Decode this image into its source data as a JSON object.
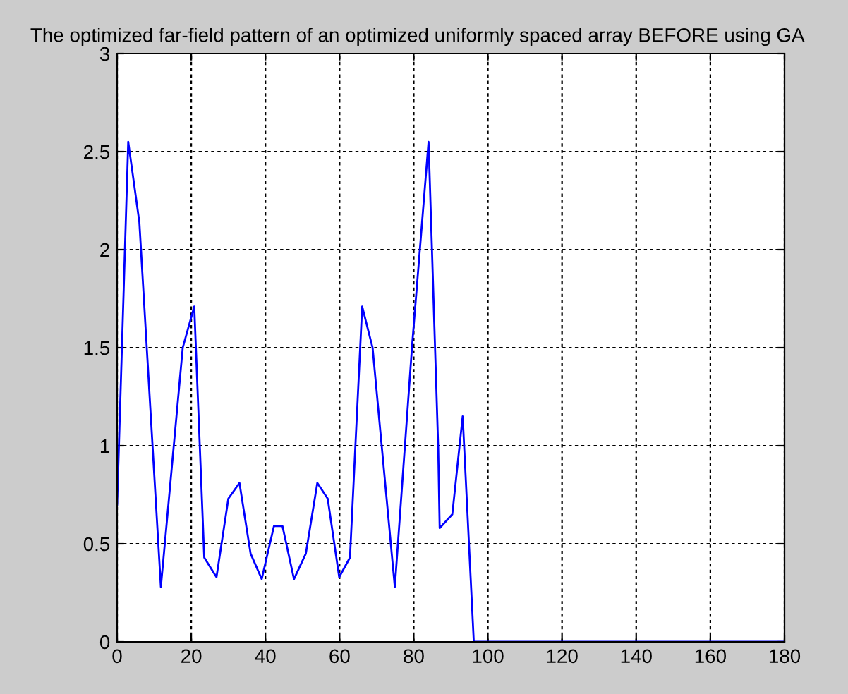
{
  "chart_data": {
    "type": "line",
    "title": "The optimized far-field pattern of an optimized uniformly spaced array BEFORE using GA",
    "series": [
      {
        "color": "#0000ff",
        "x": [
          0,
          3,
          6,
          11.8,
          17.7,
          20.8,
          23.5,
          26.8,
          30,
          33,
          36,
          39,
          42.3,
          44.6,
          47.7,
          50.9,
          54,
          56.8,
          59.9,
          62.8,
          66.1,
          68.9,
          74.9,
          79.6,
          84,
          86.6,
          87,
          90.4,
          93.2,
          96.2,
          180
        ],
        "values": [
          0.7,
          2.55,
          2.14,
          0.28,
          1.5,
          1.71,
          0.43,
          0.33,
          0.73,
          0.81,
          0.45,
          0.32,
          0.59,
          0.59,
          0.32,
          0.45,
          0.81,
          0.73,
          0.33,
          0.43,
          1.71,
          1.5,
          0.28,
          1.52,
          2.55,
          0.99,
          0.58,
          0.65,
          1.15,
          0,
          0
        ]
      }
    ],
    "xlim": [
      0,
      180
    ],
    "xticks": [
      0,
      20,
      40,
      60,
      80,
      100,
      120,
      140,
      160,
      180
    ],
    "ylim": [
      0,
      3
    ],
    "yticks": [
      0,
      0.5,
      1,
      1.5,
      2,
      2.5,
      3
    ],
    "grid": true,
    "line_style": "solid"
  }
}
